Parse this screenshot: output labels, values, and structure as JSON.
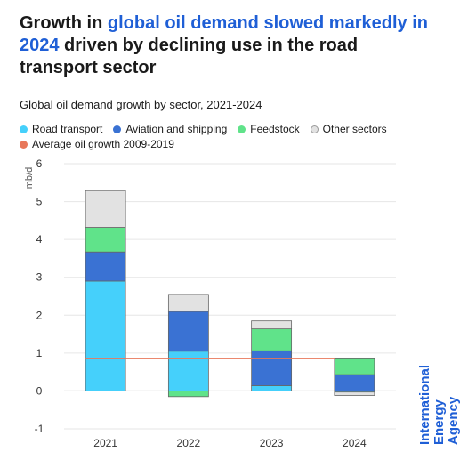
{
  "headline": {
    "part1": "Growth in ",
    "highlight": "global oil demand slowed markedly in 2024",
    "part2": " driven by declining use in the road transport sector"
  },
  "brand": {
    "line1": "International",
    "line2": "Energy Agency"
  },
  "chart_data": {
    "type": "bar",
    "stacked": true,
    "title": "Global oil demand growth by sector, 2021-2024",
    "ylabel": "mb/d",
    "xlabel": "",
    "ylim": [
      -1,
      6
    ],
    "yticks": [
      -1,
      0,
      1,
      2,
      3,
      4,
      5,
      6
    ],
    "grid": true,
    "legend_position": "top-left",
    "categories": [
      "2021",
      "2022",
      "2023",
      "2024"
    ],
    "series": [
      {
        "name": "Road transport",
        "color": "#45d0fb",
        "values": [
          2.9,
          1.05,
          0.14,
          -0.03
        ]
      },
      {
        "name": "Aviation and shipping",
        "color": "#3a72d3",
        "values": [
          0.77,
          1.05,
          0.92,
          0.43
        ]
      },
      {
        "name": "Feedstock",
        "color": "#60e38a",
        "values": [
          0.65,
          -0.15,
          0.58,
          0.44
        ]
      },
      {
        "name": "Other sectors",
        "color": "#e2e2e2",
        "values": [
          0.97,
          0.45,
          0.21,
          -0.09
        ]
      }
    ],
    "reference_line": {
      "name": "Average oil growth 2009-2019",
      "color": "#e8775a",
      "value": 0.86
    }
  }
}
